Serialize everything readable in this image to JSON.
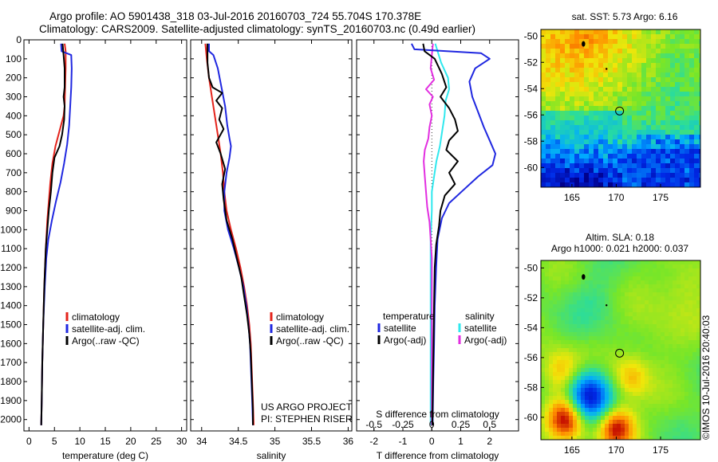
{
  "header": {
    "title_line1": "Argo profile: AO 5901438_318 03-Jul-2016 20160703_724 55.704S 170.378E",
    "title_line2": "Climatology: CARS2009. Satellite-adjusted climatology: synTS_20160703.nc (0.49d earlier)"
  },
  "colors": {
    "climatology": "#e4231b",
    "satellite": "#1f27e0",
    "argo": "#000000",
    "sal_satellite": "#2fe8ee",
    "sal_argo": "#e22ee0"
  },
  "chart_data": [
    {
      "type": "line",
      "name": "temperature",
      "xlabel": "temperature (deg C)",
      "ylabel": "",
      "xlim": [
        -1,
        31
      ],
      "ylim": [
        2060,
        0
      ],
      "xticks": [
        0,
        5,
        10,
        15,
        20,
        25,
        30
      ],
      "yticks": [
        0,
        100,
        200,
        300,
        400,
        500,
        600,
        700,
        800,
        900,
        1000,
        1100,
        1200,
        1300,
        1400,
        1500,
        1600,
        1700,
        1800,
        1900,
        2000
      ],
      "legend": {
        "placement": "lower-center",
        "entries": [
          "climatology",
          "satellite-adj. clim.",
          "Argo(..raw -QC)"
        ]
      },
      "series": [
        {
          "name": "climatology",
          "color_key": "climatology",
          "points": [
            [
              7.0,
              20
            ],
            [
              7.2,
              60
            ],
            [
              7.2,
              150
            ],
            [
              7.1,
              250
            ],
            [
              7.0,
              350
            ],
            [
              6.8,
              400
            ],
            [
              6.0,
              480
            ],
            [
              5.2,
              560
            ],
            [
              4.6,
              650
            ],
            [
              4.2,
              750
            ],
            [
              3.9,
              850
            ],
            [
              3.6,
              950
            ],
            [
              3.3,
              1100
            ],
            [
              3.0,
              1300
            ],
            [
              2.8,
              1500
            ],
            [
              2.6,
              1700
            ],
            [
              2.5,
              1900
            ],
            [
              2.4,
              2030
            ]
          ]
        },
        {
          "name": "satellite-adj. clim.",
          "color_key": "satellite",
          "points": [
            [
              6.3,
              20
            ],
            [
              6.4,
              60
            ],
            [
              8.3,
              80
            ],
            [
              8.4,
              150
            ],
            [
              8.3,
              250
            ],
            [
              8.1,
              350
            ],
            [
              7.9,
              450
            ],
            [
              7.5,
              550
            ],
            [
              6.9,
              650
            ],
            [
              6.2,
              750
            ],
            [
              5.3,
              850
            ],
            [
              4.5,
              950
            ],
            [
              3.8,
              1050
            ],
            [
              3.4,
              1150
            ],
            [
              3.1,
              1300
            ],
            [
              2.8,
              1500
            ],
            [
              2.6,
              1700
            ],
            [
              2.5,
              1900
            ],
            [
              2.4,
              2030
            ]
          ]
        },
        {
          "name": "Argo(..raw -QC)",
          "color_key": "argo",
          "points": [
            [
              6.6,
              20
            ],
            [
              6.8,
              80
            ],
            [
              7.0,
              150
            ],
            [
              7.0,
              250
            ],
            [
              6.8,
              300
            ],
            [
              7.0,
              350
            ],
            [
              6.9,
              420
            ],
            [
              6.5,
              500
            ],
            [
              6.0,
              560
            ],
            [
              5.0,
              620
            ],
            [
              4.6,
              700
            ],
            [
              4.3,
              800
            ],
            [
              3.9,
              900
            ],
            [
              3.6,
              1000
            ],
            [
              3.3,
              1100
            ],
            [
              3.0,
              1300
            ],
            [
              2.8,
              1500
            ],
            [
              2.6,
              1700
            ],
            [
              2.5,
              1900
            ],
            [
              2.4,
              2030
            ]
          ]
        }
      ]
    },
    {
      "type": "line",
      "name": "salinity",
      "xlabel": "salinity",
      "ylabel": "",
      "xlim": [
        33.85,
        36.05
      ],
      "ylim": [
        2060,
        0
      ],
      "xticks": [
        34,
        34.5,
        35,
        35.5,
        36
      ],
      "xticklabels": [
        "34",
        "34.5",
        "35",
        "35.5",
        "36"
      ],
      "legend": {
        "placement": "lower-center",
        "entries": [
          "climatology",
          "satellite-adj. clim.",
          "Argo(..raw -QC)"
        ]
      },
      "annotations": [
        "US ARGO PROJECT",
        "PI: STEPHEN RISER"
      ],
      "series": [
        {
          "name": "climatology",
          "color_key": "climatology",
          "points": [
            [
              34.05,
              20
            ],
            [
              34.07,
              100
            ],
            [
              34.1,
              200
            ],
            [
              34.14,
              300
            ],
            [
              34.18,
              400
            ],
            [
              34.22,
              500
            ],
            [
              34.26,
              600
            ],
            [
              34.29,
              700
            ],
            [
              34.31,
              800
            ],
            [
              34.34,
              900
            ],
            [
              34.4,
              1000
            ],
            [
              34.47,
              1100
            ],
            [
              34.53,
              1200
            ],
            [
              34.58,
              1300
            ],
            [
              34.62,
              1400
            ],
            [
              34.65,
              1500
            ],
            [
              34.67,
              1600
            ],
            [
              34.68,
              1700
            ],
            [
              34.69,
              1800
            ],
            [
              34.7,
              1900
            ],
            [
              34.71,
              2030
            ]
          ]
        },
        {
          "name": "satellite-adj. clim.",
          "color_key": "satellite",
          "points": [
            [
              34.1,
              20
            ],
            [
              34.1,
              60
            ],
            [
              34.16,
              80
            ],
            [
              34.22,
              150
            ],
            [
              34.27,
              250
            ],
            [
              34.32,
              350
            ],
            [
              34.35,
              450
            ],
            [
              34.38,
              520
            ],
            [
              34.4,
              560
            ],
            [
              34.38,
              620
            ],
            [
              34.34,
              700
            ],
            [
              34.31,
              800
            ],
            [
              34.31,
              900
            ],
            [
              34.36,
              1000
            ],
            [
              34.44,
              1100
            ],
            [
              34.51,
              1200
            ],
            [
              34.57,
              1300
            ],
            [
              34.61,
              1400
            ],
            [
              34.64,
              1500
            ],
            [
              34.66,
              1600
            ],
            [
              34.67,
              1700
            ],
            [
              34.68,
              1800
            ],
            [
              34.69,
              1900
            ],
            [
              34.7,
              2030
            ]
          ]
        },
        {
          "name": "Argo(..raw -QC)",
          "color_key": "argo",
          "points": [
            [
              34.08,
              20
            ],
            [
              34.08,
              120
            ],
            [
              34.1,
              200
            ],
            [
              34.15,
              250
            ],
            [
              34.28,
              280
            ],
            [
              34.2,
              320
            ],
            [
              34.28,
              360
            ],
            [
              34.24,
              420
            ],
            [
              34.3,
              470
            ],
            [
              34.2,
              540
            ],
            [
              34.26,
              600
            ],
            [
              34.32,
              680
            ],
            [
              34.28,
              760
            ],
            [
              34.3,
              840
            ],
            [
              34.34,
              950
            ],
            [
              34.42,
              1050
            ],
            [
              34.48,
              1150
            ],
            [
              34.54,
              1250
            ],
            [
              34.58,
              1350
            ],
            [
              34.62,
              1450
            ],
            [
              34.65,
              1550
            ],
            [
              34.67,
              1650
            ],
            [
              34.68,
              1750
            ],
            [
              34.69,
              1850
            ],
            [
              34.7,
              1950
            ],
            [
              34.7,
              2030
            ]
          ]
        }
      ]
    },
    {
      "type": "line",
      "name": "difference",
      "xlabel": "T difference from climatology",
      "xlabel_top": "S difference from climatology",
      "xlim": [
        -2.6,
        3.0
      ],
      "s_axis_scale": 4,
      "ylim": [
        2060,
        0
      ],
      "xticks": [
        -2,
        -1,
        0,
        1,
        2
      ],
      "xticks_top": [
        -0.5,
        -0.25,
        0,
        0.25,
        0.5
      ],
      "xticklabels_top": [
        "-0.5",
        "-0.25",
        "0",
        "0.25",
        "0.5"
      ],
      "legend": {
        "placement": "lower-center",
        "entries": [
          "temperature",
          "satellite",
          "Argo(-adj)",
          "salinity",
          "satellite",
          "Argo(-adj)"
        ]
      },
      "series": [
        {
          "name": "temperature satellite",
          "color_key": "satellite",
          "points": [
            [
              -0.7,
              20
            ],
            [
              -0.6,
              50
            ],
            [
              1.7,
              70
            ],
            [
              2.0,
              100
            ],
            [
              1.5,
              150
            ],
            [
              1.3,
              220
            ],
            [
              1.4,
              300
            ],
            [
              1.6,
              380
            ],
            [
              1.8,
              460
            ],
            [
              2.0,
              530
            ],
            [
              2.2,
              600
            ],
            [
              2.1,
              660
            ],
            [
              1.6,
              720
            ],
            [
              1.1,
              790
            ],
            [
              0.6,
              860
            ],
            [
              0.35,
              940
            ],
            [
              0.2,
              1050
            ],
            [
              0.15,
              1200
            ],
            [
              0.1,
              1400
            ],
            [
              0.08,
              1600
            ],
            [
              0.05,
              1800
            ],
            [
              0.03,
              2030
            ]
          ]
        },
        {
          "name": "temperature Argo(-adj)",
          "color_key": "argo",
          "points": [
            [
              -0.3,
              20
            ],
            [
              -0.25,
              60
            ],
            [
              0.1,
              100
            ],
            [
              0.35,
              180
            ],
            [
              0.5,
              250
            ],
            [
              0.3,
              300
            ],
            [
              0.6,
              360
            ],
            [
              0.8,
              420
            ],
            [
              0.9,
              480
            ],
            [
              0.6,
              530
            ],
            [
              0.5,
              580
            ],
            [
              0.9,
              640
            ],
            [
              0.6,
              700
            ],
            [
              0.8,
              760
            ],
            [
              0.45,
              820
            ],
            [
              0.3,
              900
            ],
            [
              0.25,
              980
            ],
            [
              0.15,
              1080
            ],
            [
              0.1,
              1200
            ],
            [
              0.08,
              1400
            ],
            [
              0.06,
              1600
            ],
            [
              0.04,
              1800
            ],
            [
              0.02,
              2030
            ]
          ]
        },
        {
          "name": "salinity satellite",
          "color_key": "sal_satellite",
          "points": [
            [
              0.03,
              20
            ],
            [
              0.05,
              60
            ],
            [
              0.08,
              120
            ],
            [
              0.14,
              200
            ],
            [
              0.15,
              260
            ],
            [
              0.12,
              320
            ],
            [
              0.11,
              400
            ],
            [
              0.09,
              480
            ],
            [
              0.07,
              560
            ],
            [
              0.04,
              640
            ],
            [
              0.02,
              720
            ],
            [
              0.0,
              800
            ],
            [
              0.0,
              900
            ],
            [
              -0.01,
              1050
            ],
            [
              -0.01,
              1200
            ],
            [
              -0.01,
              1400
            ],
            [
              -0.01,
              1600
            ],
            [
              -0.01,
              1800
            ],
            [
              -0.01,
              2030
            ]
          ]
        },
        {
          "name": "salinity Argo(-adj)",
          "color_key": "sal_argo",
          "points": [
            [
              0.01,
              20
            ],
            [
              0.0,
              80
            ],
            [
              -0.01,
              150
            ],
            [
              0.02,
              210
            ],
            [
              -0.05,
              260
            ],
            [
              0.01,
              300
            ],
            [
              -0.02,
              340
            ],
            [
              0.0,
              400
            ],
            [
              -0.02,
              460
            ],
            [
              -0.03,
              520
            ],
            [
              -0.06,
              580
            ],
            [
              -0.07,
              640
            ],
            [
              -0.06,
              720
            ],
            [
              -0.05,
              800
            ],
            [
              -0.04,
              880
            ],
            [
              -0.02,
              960
            ],
            [
              -0.01,
              1050
            ],
            [
              0.0,
              1150
            ],
            [
              0.0,
              1300
            ],
            [
              0.0,
              1500
            ],
            [
              0.0,
              1700
            ],
            [
              0.0,
              1900
            ],
            [
              0.0,
              2030
            ]
          ]
        }
      ]
    },
    {
      "type": "heatmap",
      "name": "sst-map",
      "title": "sat. SST: 5.73 Argo: 6.16",
      "xlim": [
        161.5,
        179.5
      ],
      "ylim": [
        -61.5,
        -49.5
      ],
      "xticks": [
        165,
        170,
        175
      ],
      "yticks": [
        -50,
        -52,
        -54,
        -56,
        -58,
        -60
      ],
      "marker": [
        170.378,
        -55.704
      ]
    },
    {
      "type": "heatmap",
      "name": "sla-map",
      "title": "Altim. SLA: 0.18",
      "subtitle": "Argo h1000: 0.021 h2000: 0.037",
      "xlim": [
        161.5,
        179.5
      ],
      "ylim": [
        -61.5,
        -49.5
      ],
      "xticks": [
        165,
        170,
        175
      ],
      "yticks": [
        -50,
        -52,
        -54,
        -56,
        -58,
        -60
      ],
      "marker": [
        170.378,
        -55.704
      ]
    }
  ],
  "footer": {
    "stamp": "©IMOS 10-Jul-2016 20:40:03"
  }
}
